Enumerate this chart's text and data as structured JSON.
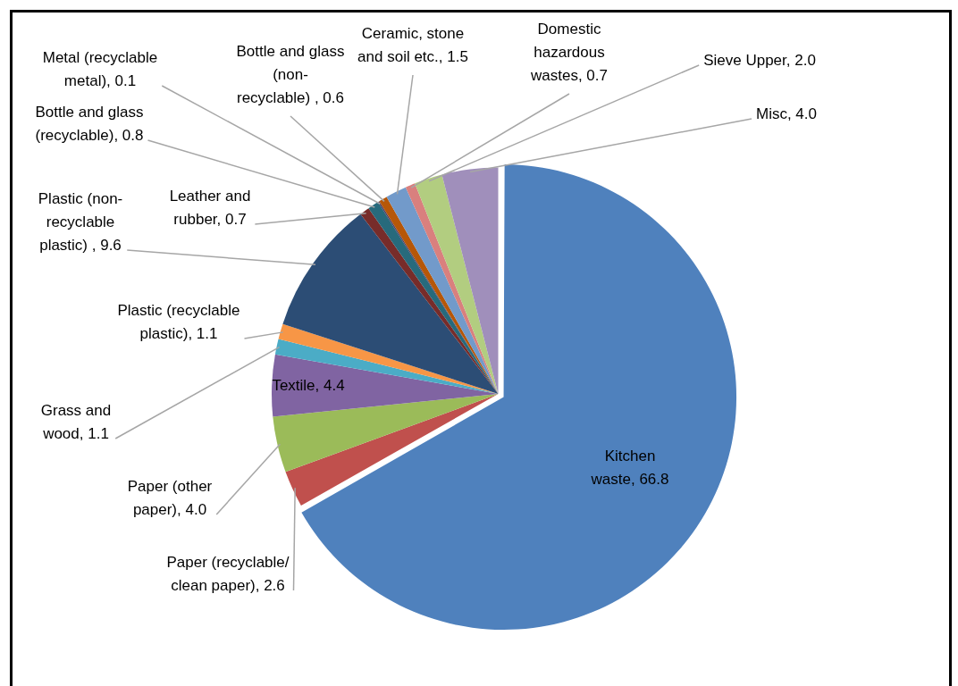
{
  "chart_data": {
    "type": "pie",
    "categories": [
      "Kitchen waste",
      "Paper (recyclable/clean paper)",
      "Paper (other paper)",
      "Textile",
      "Grass and wood",
      "Plastic (recyclable plastic)",
      "Plastic (non-recyclable plastic) ",
      "Leather and rubber",
      "Bottle and glass (recyclable)",
      "Metal (recyclable metal)",
      "Bottle and glass (non-recyclable) ",
      "Ceramic, stone and soil etc.",
      "Domestic hazardous wastes",
      "Sieve Upper",
      "Misc"
    ],
    "values": [
      66.8,
      2.6,
      4.0,
      4.4,
      1.1,
      1.1,
      9.6,
      0.7,
      0.8,
      0.1,
      0.6,
      1.5,
      0.7,
      2.0,
      4.0
    ],
    "value_labels": [
      "66.8",
      "2.6",
      "4.0",
      "4.4",
      "1.1",
      "1.1",
      "9.6",
      "0.7",
      "0.8",
      "0.1",
      "0.6",
      "1.5",
      "0.7",
      "2.0",
      "4.0"
    ],
    "colors": [
      "#4f81bd",
      "#c0504d",
      "#9bbb59",
      "#8064a2",
      "#4bacc6",
      "#f79646",
      "#2c4d75",
      "#772c2a",
      "#276a7c",
      "#4d3b62",
      "#b65708",
      "#729aca",
      "#d9807e",
      "#b2cd80",
      "#a08fbb"
    ],
    "legend": false
  }
}
